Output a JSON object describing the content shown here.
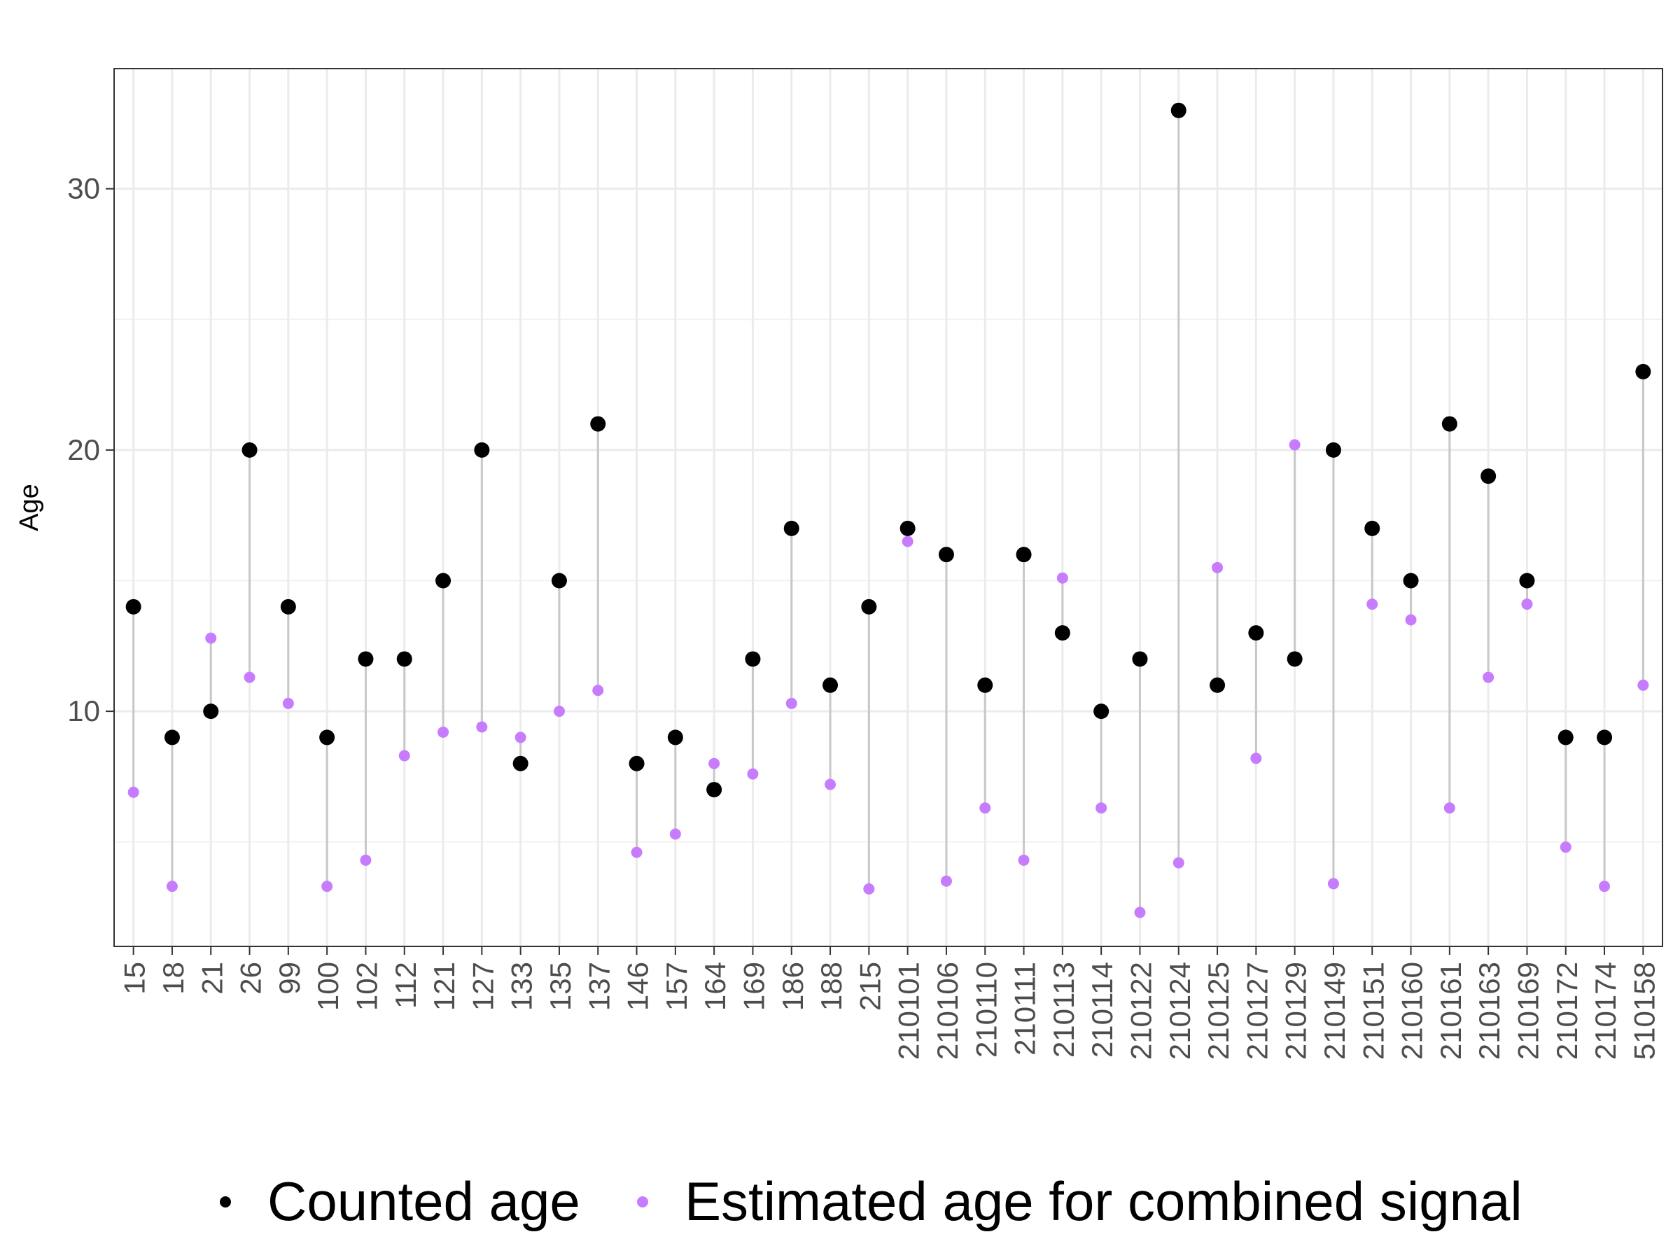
{
  "chart_data": {
    "type": "scatter",
    "subtype": "dumbbell",
    "title": "",
    "xlabel": "",
    "ylabel": "Age",
    "ylim": [
      1,
      34.6
    ],
    "y_ticks": [
      10,
      20,
      30
    ],
    "grid": true,
    "legend_position": "bottom",
    "categories": [
      "15",
      "18",
      "21",
      "26",
      "99",
      "100",
      "102",
      "112",
      "121",
      "127",
      "133",
      "135",
      "137",
      "146",
      "157",
      "164",
      "169",
      "186",
      "188",
      "215",
      "210101",
      "210106",
      "210110",
      "210111",
      "210113",
      "210114",
      "210122",
      "210124",
      "210125",
      "210127",
      "210129",
      "210149",
      "210151",
      "210160",
      "210161",
      "210163",
      "210169",
      "210172",
      "210174",
      "510158"
    ],
    "series": [
      {
        "name": "Counted age",
        "color": "#000000",
        "values": [
          14,
          9,
          10,
          20,
          14,
          9,
          12,
          12,
          15,
          20,
          8,
          15,
          21,
          8,
          9,
          7,
          12,
          17,
          11,
          14,
          17,
          16,
          11,
          16,
          13,
          10,
          12,
          33,
          11,
          13,
          12,
          20,
          17,
          15,
          21,
          19,
          15,
          9,
          9,
          23
        ]
      },
      {
        "name": "Estimated age for combined signal",
        "color": "#C77CFF",
        "values": [
          6.9,
          3.3,
          12.8,
          11.3,
          10.3,
          3.3,
          4.3,
          8.3,
          9.2,
          9.4,
          9.0,
          10.0,
          10.8,
          4.6,
          5.3,
          8.0,
          7.6,
          10.3,
          7.2,
          3.2,
          16.5,
          3.5,
          6.3,
          4.3,
          15.1,
          6.3,
          2.3,
          4.2,
          15.5,
          8.2,
          20.2,
          3.4,
          14.1,
          13.5,
          6.3,
          11.3,
          14.1,
          4.8,
          3.3,
          11.0
        ]
      }
    ],
    "segment_color": "#C8C8C8"
  }
}
